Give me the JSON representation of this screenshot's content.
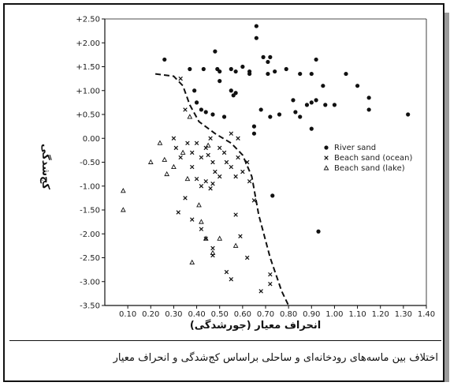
{
  "chart_data": {
    "type": "scatter",
    "title": "",
    "xlabel": "انحراف معیار (جورشدگی)",
    "ylabel": "کج‌شدگی",
    "xlim": [
      0.0,
      1.4
    ],
    "ylim": [
      -3.5,
      2.5
    ],
    "x_ticks": [
      "0.10",
      "0.20",
      "0.30",
      "0.40",
      "0.50",
      "0.60",
      "0.70",
      "0.80",
      "0.90",
      "1.00",
      "1.10",
      "1.20",
      "1.30",
      "1.40"
    ],
    "y_ticks": [
      "+2.50",
      "+2.00",
      "+1.50",
      "+1.00",
      "+0.50",
      "0.00",
      "-0.50",
      "-1.00",
      "-1.50",
      "-2.00",
      "-2.50",
      "-3.00",
      "-3.50"
    ],
    "legend_position": "right",
    "series": [
      {
        "name": "River sand",
        "marker": "dot",
        "points": [
          [
            0.26,
            1.65
          ],
          [
            0.37,
            1.45
          ],
          [
            0.43,
            1.45
          ],
          [
            0.48,
            1.82
          ],
          [
            0.49,
            1.45
          ],
          [
            0.5,
            1.4
          ],
          [
            0.5,
            1.2
          ],
          [
            0.55,
            1.45
          ],
          [
            0.57,
            1.4
          ],
          [
            0.6,
            1.5
          ],
          [
            0.63,
            1.4
          ],
          [
            0.63,
            1.35
          ],
          [
            0.66,
            2.35
          ],
          [
            0.66,
            2.1
          ],
          [
            0.69,
            1.7
          ],
          [
            0.71,
            1.6
          ],
          [
            0.71,
            1.35
          ],
          [
            0.72,
            1.7
          ],
          [
            0.74,
            1.4
          ],
          [
            0.79,
            1.45
          ],
          [
            0.85,
            1.35
          ],
          [
            0.9,
            1.35
          ],
          [
            0.92,
            1.65
          ],
          [
            0.95,
            1.1
          ],
          [
            1.05,
            1.35
          ],
          [
            1.1,
            1.1
          ],
          [
            1.15,
            0.85
          ],
          [
            1.32,
            0.5
          ],
          [
            0.55,
            1.0
          ],
          [
            0.57,
            0.95
          ],
          [
            0.56,
            0.9
          ],
          [
            0.4,
            0.75
          ],
          [
            0.42,
            0.6
          ],
          [
            0.44,
            0.55
          ],
          [
            0.47,
            0.5
          ],
          [
            0.52,
            0.45
          ],
          [
            0.39,
            1.0
          ],
          [
            0.65,
            0.25
          ],
          [
            0.65,
            0.1
          ],
          [
            0.68,
            0.6
          ],
          [
            0.72,
            0.45
          ],
          [
            0.82,
            0.8
          ],
          [
            0.83,
            0.55
          ],
          [
            0.85,
            0.45
          ],
          [
            0.88,
            0.7
          ],
          [
            0.9,
            0.2
          ],
          [
            0.9,
            0.75
          ],
          [
            0.92,
            0.8
          ],
          [
            0.96,
            0.7
          ],
          [
            1.0,
            0.7
          ],
          [
            1.15,
            0.6
          ],
          [
            0.93,
            -1.95
          ],
          [
            0.73,
            -1.2
          ],
          [
            0.76,
            0.5
          ]
        ]
      },
      {
        "name": "Beach sand (ocean)",
        "marker": "x",
        "points": [
          [
            0.33,
            1.25
          ],
          [
            0.35,
            0.6
          ],
          [
            0.3,
            0.0
          ],
          [
            0.31,
            -0.2
          ],
          [
            0.33,
            -0.4
          ],
          [
            0.36,
            -0.1
          ],
          [
            0.38,
            -0.3
          ],
          [
            0.4,
            -0.1
          ],
          [
            0.42,
            -0.4
          ],
          [
            0.44,
            -0.2
          ],
          [
            0.46,
            0.0
          ],
          [
            0.47,
            -0.5
          ],
          [
            0.48,
            -0.7
          ],
          [
            0.5,
            -0.8
          ],
          [
            0.52,
            -0.3
          ],
          [
            0.53,
            -0.5
          ],
          [
            0.55,
            -0.6
          ],
          [
            0.57,
            -0.8
          ],
          [
            0.58,
            -0.4
          ],
          [
            0.6,
            -0.7
          ],
          [
            0.62,
            -0.5
          ],
          [
            0.63,
            -0.9
          ],
          [
            0.38,
            -0.6
          ],
          [
            0.4,
            -0.85
          ],
          [
            0.42,
            -1.0
          ],
          [
            0.44,
            -0.9
          ],
          [
            0.46,
            -1.05
          ],
          [
            0.47,
            -0.95
          ],
          [
            0.35,
            -1.25
          ],
          [
            0.32,
            -1.55
          ],
          [
            0.38,
            -1.7
          ],
          [
            0.42,
            -1.9
          ],
          [
            0.44,
            -2.1
          ],
          [
            0.47,
            -2.3
          ],
          [
            0.47,
            -2.45
          ],
          [
            0.53,
            -2.8
          ],
          [
            0.55,
            -2.95
          ],
          [
            0.57,
            -1.6
          ],
          [
            0.59,
            -2.05
          ],
          [
            0.62,
            -2.5
          ],
          [
            0.65,
            -1.3
          ],
          [
            0.68,
            -3.2
          ],
          [
            0.72,
            -2.85
          ],
          [
            0.72,
            -3.05
          ],
          [
            0.5,
            -0.2
          ],
          [
            0.55,
            0.1
          ],
          [
            0.58,
            0.0
          ],
          [
            0.45,
            -0.35
          ]
        ]
      },
      {
        "name": "Beach sand (lake)",
        "marker": "triangle",
        "points": [
          [
            0.08,
            -1.1
          ],
          [
            0.08,
            -1.5
          ],
          [
            0.2,
            -0.5
          ],
          [
            0.24,
            -0.1
          ],
          [
            0.27,
            -0.75
          ],
          [
            0.3,
            -0.6
          ],
          [
            0.34,
            -0.3
          ],
          [
            0.37,
            0.45
          ],
          [
            0.41,
            -1.4
          ],
          [
            0.42,
            -1.75
          ],
          [
            0.44,
            -2.1
          ],
          [
            0.47,
            -2.4
          ],
          [
            0.5,
            -2.1
          ],
          [
            0.57,
            -2.25
          ],
          [
            0.38,
            -2.6
          ],
          [
            0.26,
            -0.45
          ],
          [
            0.36,
            -0.85
          ],
          [
            0.45,
            -0.15
          ]
        ]
      }
    ],
    "boundary_line": {
      "style": "dashed",
      "points": [
        [
          0.22,
          1.35
        ],
        [
          0.3,
          1.3
        ],
        [
          0.34,
          1.1
        ],
        [
          0.37,
          0.7
        ],
        [
          0.41,
          0.35
        ],
        [
          0.48,
          0.1
        ],
        [
          0.55,
          -0.1
        ],
        [
          0.6,
          -0.35
        ],
        [
          0.64,
          -0.8
        ],
        [
          0.67,
          -1.6
        ],
        [
          0.72,
          -2.5
        ],
        [
          0.77,
          -3.2
        ],
        [
          0.8,
          -3.5
        ]
      ]
    }
  },
  "caption": "اختلاف بین ماسه‌های رودخانه‌ای و ساحلی براساس کج‌شدگی و انحراف معیار",
  "colors": {
    "ink": "#111111",
    "frame_shadow": "#9a9a9a",
    "background": "#ffffff"
  }
}
